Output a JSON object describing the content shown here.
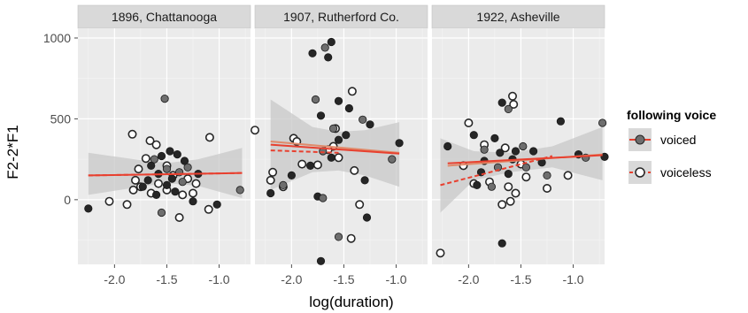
{
  "chart_data": {
    "type": "scatter",
    "xlabel": "log(duration)",
    "ylabel": "F2-2*F1",
    "xlim": [
      -2.35,
      -0.7
    ],
    "ylim": [
      -400,
      1060
    ],
    "x_ticks": [
      -2.0,
      -1.5,
      -1.0
    ],
    "x_tick_labels": [
      "-2.0",
      "-1.5",
      "-1.0"
    ],
    "y_ticks": [
      0,
      500,
      1000
    ],
    "y_tick_labels": [
      "0",
      "500",
      "1000"
    ],
    "grid": true,
    "legend": {
      "title": "following voice",
      "position": "right",
      "entries": [
        {
          "label": "voiced",
          "line": "solid"
        },
        {
          "label": "voiceless",
          "line": "dashed"
        }
      ]
    },
    "colors": {
      "panel_bg": "#ebebeb",
      "strip_bg": "#d9d9d9",
      "grid": "#ffffff",
      "ribbon": "#c8c8c8",
      "voiced_line": "#e8402f",
      "voiceless_line": "#e8402f",
      "voiced_point": "#262626",
      "voiced_point_mid": "#6e6e6e",
      "voiceless_point_fill": "#ffffff",
      "voiceless_point_stroke": "#262626",
      "overall_line": "#e08a6a"
    },
    "panels": [
      {
        "title": "1896, Chattanooga",
        "fits": {
          "voiced": {
            "x": [
              -2.25,
              -0.78
            ],
            "y": [
              150,
              165
            ]
          },
          "voiceless": {
            "x": [
              -2.25,
              -0.78
            ],
            "y": [
              150,
              165
            ]
          },
          "band": {
            "x": [
              -2.25,
              -1.65,
              -1.45,
              -1.2,
              -0.78
            ],
            "upper": [
              290,
              235,
              230,
              250,
              320
            ],
            "lower": [
              30,
              90,
              100,
              85,
              10
            ]
          }
        },
        "voiced_points": [
          {
            "x": -2.25,
            "y": -55
          },
          {
            "x": -1.52,
            "y": 625
          },
          {
            "x": -1.47,
            "y": 300
          },
          {
            "x": -1.55,
            "y": 270
          },
          {
            "x": -1.62,
            "y": 250
          },
          {
            "x": -1.4,
            "y": 280
          },
          {
            "x": -1.33,
            "y": 240
          },
          {
            "x": -1.5,
            "y": 190
          },
          {
            "x": -1.58,
            "y": 160
          },
          {
            "x": -1.45,
            "y": 130
          },
          {
            "x": -1.35,
            "y": 110
          },
          {
            "x": -1.68,
            "y": 120
          },
          {
            "x": -1.73,
            "y": 80
          },
          {
            "x": -1.55,
            "y": -80
          },
          {
            "x": -1.25,
            "y": -10
          },
          {
            "x": -1.02,
            "y": -30
          },
          {
            "x": -0.8,
            "y": 60
          },
          {
            "x": -1.42,
            "y": 50
          },
          {
            "x": -1.6,
            "y": 30
          },
          {
            "x": -1.3,
            "y": 200
          },
          {
            "x": -1.2,
            "y": 160
          },
          {
            "x": -1.65,
            "y": 210
          },
          {
            "x": -1.38,
            "y": 170
          },
          {
            "x": -1.5,
            "y": 90
          }
        ],
        "voiceless_points": [
          {
            "x": -1.83,
            "y": 405
          },
          {
            "x": -1.66,
            "y": 365
          },
          {
            "x": -1.6,
            "y": 340
          },
          {
            "x": -1.09,
            "y": 385
          },
          {
            "x": -1.7,
            "y": 255
          },
          {
            "x": -1.77,
            "y": 190
          },
          {
            "x": -1.5,
            "y": 210
          },
          {
            "x": -1.44,
            "y": 150
          },
          {
            "x": -1.8,
            "y": 120
          },
          {
            "x": -1.82,
            "y": 60
          },
          {
            "x": -1.65,
            "y": 40
          },
          {
            "x": -1.88,
            "y": -30
          },
          {
            "x": -2.05,
            "y": -10
          },
          {
            "x": -1.35,
            "y": 30
          },
          {
            "x": -1.22,
            "y": 100
          },
          {
            "x": -1.1,
            "y": -60
          },
          {
            "x": -1.38,
            "y": -110
          },
          {
            "x": -1.5,
            "y": 60
          },
          {
            "x": -1.25,
            "y": 40
          },
          {
            "x": -1.58,
            "y": 100
          },
          {
            "x": -1.75,
            "y": 80
          },
          {
            "x": -1.3,
            "y": 130
          }
        ]
      },
      {
        "title": "1907, Rutherford Co.",
        "fits": {
          "voiced": {
            "x": [
              -2.2,
              -0.97
            ],
            "y": [
              340,
              285
            ]
          },
          "voiceless": {
            "x": [
              -2.2,
              -1.55
            ],
            "y": [
              305,
              290
            ]
          },
          "overall": {
            "x": [
              -2.2,
              -0.97
            ],
            "y": [
              360,
              290
            ]
          },
          "band": {
            "x": [
              -2.2,
              -1.8,
              -1.55,
              -1.3,
              -0.97
            ],
            "upper": [
              620,
              450,
              420,
              430,
              480
            ],
            "lower": [
              60,
              170,
              180,
              150,
              80
            ]
          }
        },
        "voiced_points": [
          {
            "x": -1.8,
            "y": 905
          },
          {
            "x": -1.68,
            "y": 940
          },
          {
            "x": -1.62,
            "y": 975
          },
          {
            "x": -1.65,
            "y": 880
          },
          {
            "x": -1.77,
            "y": 620
          },
          {
            "x": -1.55,
            "y": 610
          },
          {
            "x": -1.45,
            "y": 565
          },
          {
            "x": -1.32,
            "y": 495
          },
          {
            "x": -1.25,
            "y": 465
          },
          {
            "x": -1.72,
            "y": 520
          },
          {
            "x": -1.6,
            "y": 440
          },
          {
            "x": -1.55,
            "y": 370
          },
          {
            "x": -1.48,
            "y": 400
          },
          {
            "x": -1.7,
            "y": 300
          },
          {
            "x": -1.82,
            "y": 210
          },
          {
            "x": -2.0,
            "y": 150
          },
          {
            "x": -2.08,
            "y": 90
          },
          {
            "x": -2.2,
            "y": 40
          },
          {
            "x": -1.75,
            "y": 20
          },
          {
            "x": -1.7,
            "y": 10
          },
          {
            "x": -1.3,
            "y": 120
          },
          {
            "x": -1.28,
            "y": -110
          },
          {
            "x": -1.55,
            "y": -230
          },
          {
            "x": -1.72,
            "y": -380
          },
          {
            "x": -0.97,
            "y": 350
          },
          {
            "x": -1.04,
            "y": 250
          },
          {
            "x": -1.62,
            "y": 260
          }
        ],
        "voiceless_points": [
          {
            "x": -2.35,
            "y": 430
          },
          {
            "x": -1.42,
            "y": 670
          },
          {
            "x": -1.58,
            "y": 440
          },
          {
            "x": -1.98,
            "y": 380
          },
          {
            "x": -1.95,
            "y": 360
          },
          {
            "x": -1.6,
            "y": 330
          },
          {
            "x": -1.55,
            "y": 260
          },
          {
            "x": -1.9,
            "y": 220
          },
          {
            "x": -1.75,
            "y": 215
          },
          {
            "x": -2.18,
            "y": 170
          },
          {
            "x": -2.2,
            "y": 120
          },
          {
            "x": -2.08,
            "y": 80
          },
          {
            "x": -1.4,
            "y": 180
          },
          {
            "x": -1.35,
            "y": -30
          },
          {
            "x": -1.43,
            "y": -240
          },
          {
            "x": -1.65,
            "y": 310
          }
        ]
      },
      {
        "title": "1922, Asheville",
        "fits": {
          "voiced": {
            "x": [
              -2.2,
              -0.72
            ],
            "y": [
              225,
              275
            ]
          },
          "voiceless": {
            "x": [
              -2.27,
              -1.2
            ],
            "y": [
              90,
              270
            ]
          },
          "overall": {
            "x": [
              -2.2,
              -0.72
            ],
            "y": [
              210,
              280
            ]
          },
          "band": {
            "x": [
              -2.27,
              -1.95,
              -1.6,
              -1.2,
              -0.72
            ],
            "upper": [
              380,
              300,
              290,
              330,
              450
            ],
            "lower": [
              -80,
              120,
              170,
              200,
              120
            ]
          }
        },
        "voiced_points": [
          {
            "x": -1.68,
            "y": 600
          },
          {
            "x": -1.62,
            "y": 560
          },
          {
            "x": -1.95,
            "y": 400
          },
          {
            "x": -1.75,
            "y": 380
          },
          {
            "x": -1.85,
            "y": 310
          },
          {
            "x": -1.7,
            "y": 290
          },
          {
            "x": -1.55,
            "y": 300
          },
          {
            "x": -1.48,
            "y": 330
          },
          {
            "x": -1.38,
            "y": 300
          },
          {
            "x": -1.12,
            "y": 485
          },
          {
            "x": -0.72,
            "y": 475
          },
          {
            "x": -0.7,
            "y": 265
          },
          {
            "x": -0.95,
            "y": 280
          },
          {
            "x": -0.88,
            "y": 260
          },
          {
            "x": -1.3,
            "y": 230
          },
          {
            "x": -1.58,
            "y": 250
          },
          {
            "x": -1.72,
            "y": 200
          },
          {
            "x": -1.88,
            "y": 170
          },
          {
            "x": -1.92,
            "y": 90
          },
          {
            "x": -1.78,
            "y": 80
          },
          {
            "x": -1.68,
            "y": -270
          },
          {
            "x": -2.2,
            "y": 330
          },
          {
            "x": -1.45,
            "y": 200
          },
          {
            "x": -1.62,
            "y": 160
          },
          {
            "x": -1.85,
            "y": 240
          },
          {
            "x": -1.25,
            "y": 150
          }
        ],
        "voiceless_points": [
          {
            "x": -2.27,
            "y": -330
          },
          {
            "x": -2.0,
            "y": 475
          },
          {
            "x": -1.58,
            "y": 640
          },
          {
            "x": -1.57,
            "y": 590
          },
          {
            "x": -1.85,
            "y": 340
          },
          {
            "x": -1.65,
            "y": 320
          },
          {
            "x": -1.5,
            "y": 220
          },
          {
            "x": -1.45,
            "y": 140
          },
          {
            "x": -1.8,
            "y": 110
          },
          {
            "x": -1.95,
            "y": 100
          },
          {
            "x": -1.55,
            "y": 40
          },
          {
            "x": -1.6,
            "y": -10
          },
          {
            "x": -1.68,
            "y": -30
          },
          {
            "x": -1.25,
            "y": 70
          },
          {
            "x": -1.05,
            "y": 150
          },
          {
            "x": -2.05,
            "y": 210
          },
          {
            "x": -1.62,
            "y": 80
          }
        ]
      }
    ]
  }
}
